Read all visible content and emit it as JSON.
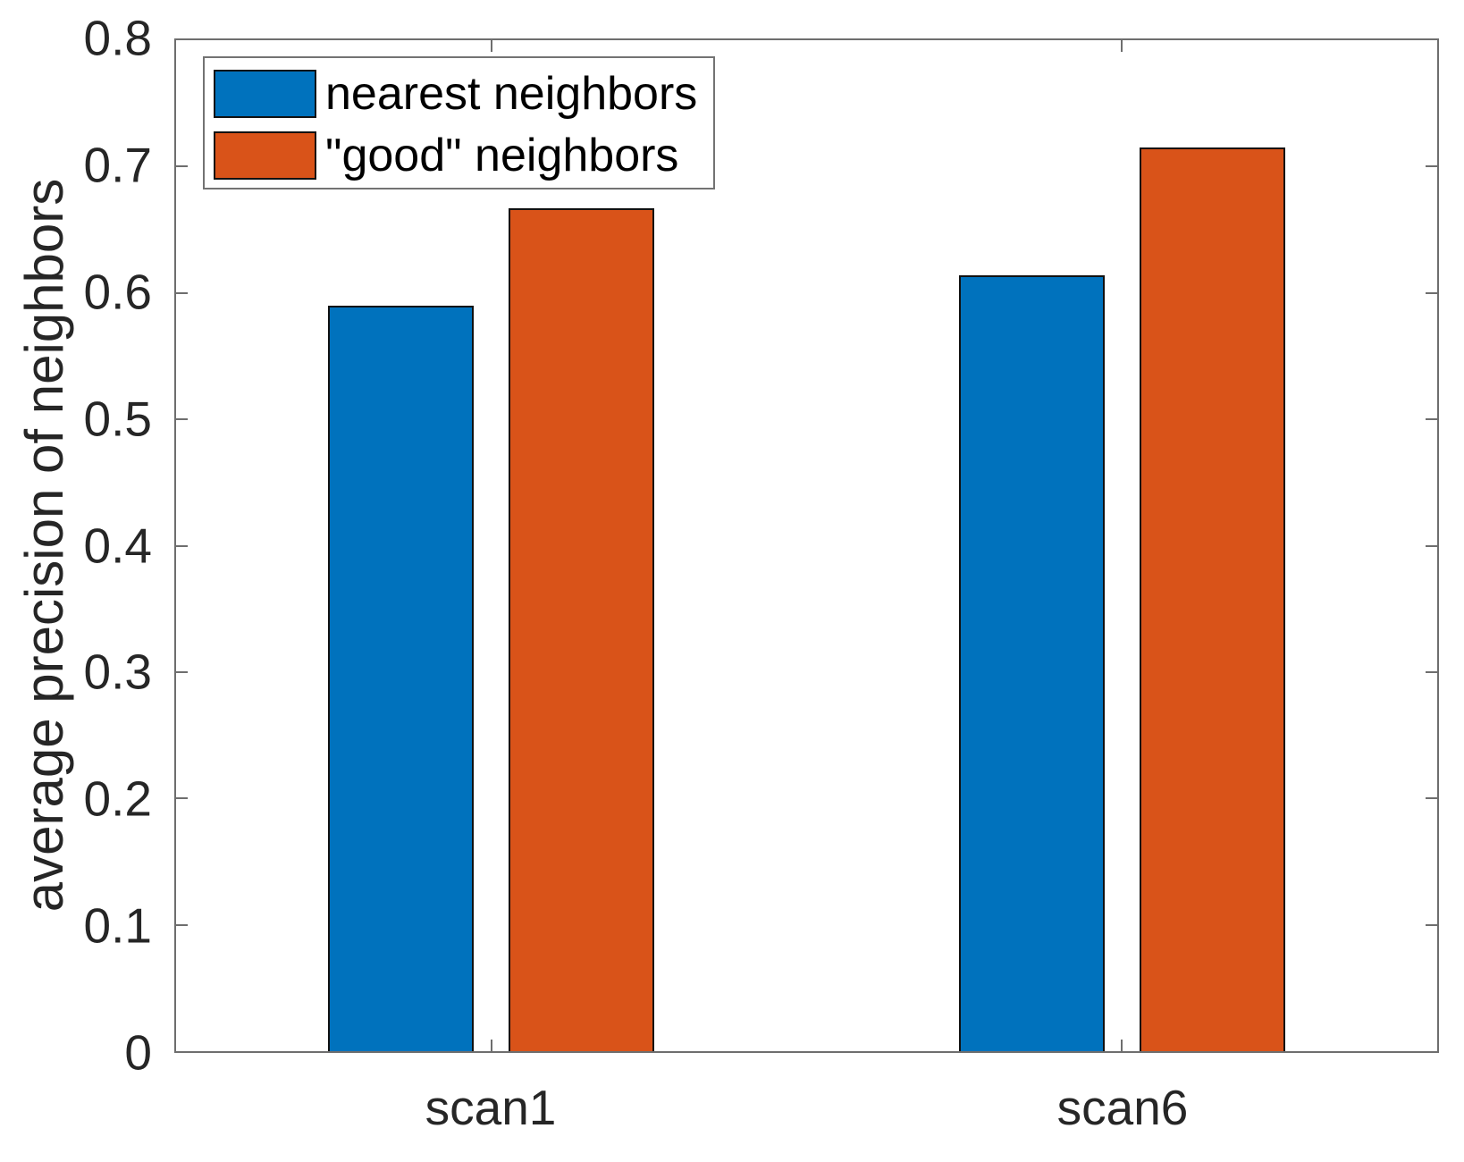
{
  "chart_data": {
    "type": "bar",
    "title": "",
    "xlabel": "",
    "ylabel": "average precision of neighbors",
    "categories": [
      "scan1",
      "scan6"
    ],
    "series": [
      {
        "name": "nearest neighbors",
        "color": "#0072BD",
        "values": [
          0.59,
          0.614
        ]
      },
      {
        "name": "\"good\" neighbors",
        "color": "#D95319",
        "values": [
          0.667,
          0.715
        ]
      }
    ],
    "ylim": [
      0,
      0.8
    ],
    "yticks": [
      0,
      0.1,
      0.2,
      0.3,
      0.4,
      0.5,
      0.6,
      0.7,
      0.8
    ],
    "ytick_labels": [
      "0",
      "0.1",
      "0.2",
      "0.3",
      "0.4",
      "0.5",
      "0.6",
      "0.7",
      "0.8"
    ],
    "grid": false,
    "legend_position": "top-left",
    "bar_edge_color": "#111111",
    "axis_color": "#6e6e6e",
    "text_color": "#262626"
  }
}
